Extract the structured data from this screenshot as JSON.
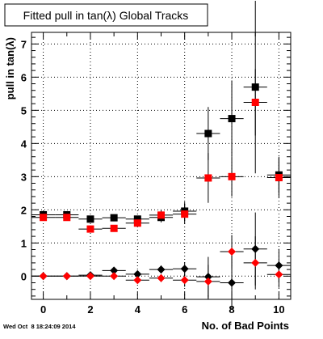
{
  "chart_data": {
    "type": "scatter",
    "title": "Fitted pull in tan(λ)  Global Tracks",
    "xlabel": "No. of Bad Points",
    "ylabel": "pull in tan(λ)",
    "xlim": [
      -0.5,
      10.5
    ],
    "ylim": [
      -0.7,
      7.35
    ],
    "x_ticks": [
      0,
      2,
      4,
      6,
      8,
      10
    ],
    "y_ticks": [
      0,
      1,
      2,
      3,
      4,
      5,
      6,
      7
    ],
    "grid": true,
    "timestamp": "Wed Oct  8 18:24:09 2014",
    "colors": {
      "black": "#000000",
      "red": "#ff0000"
    },
    "series": [
      {
        "marker": "square",
        "color": "#000000",
        "x": [
          0,
          1,
          2,
          3,
          4,
          5,
          6,
          7,
          8,
          9,
          10
        ],
        "y": [
          1.85,
          1.85,
          1.72,
          1.76,
          1.72,
          1.77,
          1.96,
          4.3,
          4.75,
          5.7,
          3.05
        ],
        "yerr": [
          0.05,
          0.05,
          0.06,
          0.08,
          0.1,
          0.15,
          0.28,
          0.8,
          1.15,
          2.6,
          0.55
        ]
      },
      {
        "marker": "square",
        "color": "#ff0000",
        "x": [
          0,
          1,
          2,
          3,
          4,
          5,
          6,
          7,
          8,
          9,
          10
        ],
        "y": [
          1.77,
          1.77,
          1.42,
          1.44,
          1.6,
          1.84,
          1.87,
          2.96,
          3.0,
          5.24,
          2.97
        ],
        "yerr": [
          0.05,
          0.05,
          0.06,
          0.08,
          0.1,
          0.15,
          0.3,
          0.75,
          0.6,
          1.0,
          0.6
        ]
      },
      {
        "marker": "diamond",
        "color": "#000000",
        "x": [
          0,
          1,
          2,
          3,
          4,
          5,
          6,
          7,
          8,
          9,
          10
        ],
        "y": [
          0.0,
          0.0,
          0.03,
          0.17,
          0.06,
          0.2,
          0.22,
          -0.02,
          -0.2,
          0.82,
          0.32
        ],
        "yerr": [
          0.03,
          0.03,
          0.04,
          0.05,
          0.08,
          0.12,
          0.2,
          0.6,
          0.8,
          1.1,
          0.5
        ]
      },
      {
        "marker": "diamond",
        "color": "#ff0000",
        "x": [
          0,
          1,
          2,
          3,
          4,
          5,
          6,
          7,
          8,
          9,
          10
        ],
        "y": [
          0.0,
          0.0,
          0.0,
          0.0,
          -0.12,
          -0.06,
          -0.12,
          -0.16,
          0.74,
          0.4,
          0.05
        ],
        "yerr": [
          0.03,
          0.03,
          0.04,
          0.05,
          0.08,
          0.12,
          0.2,
          0.5,
          0.5,
          0.8,
          0.4
        ]
      }
    ]
  }
}
